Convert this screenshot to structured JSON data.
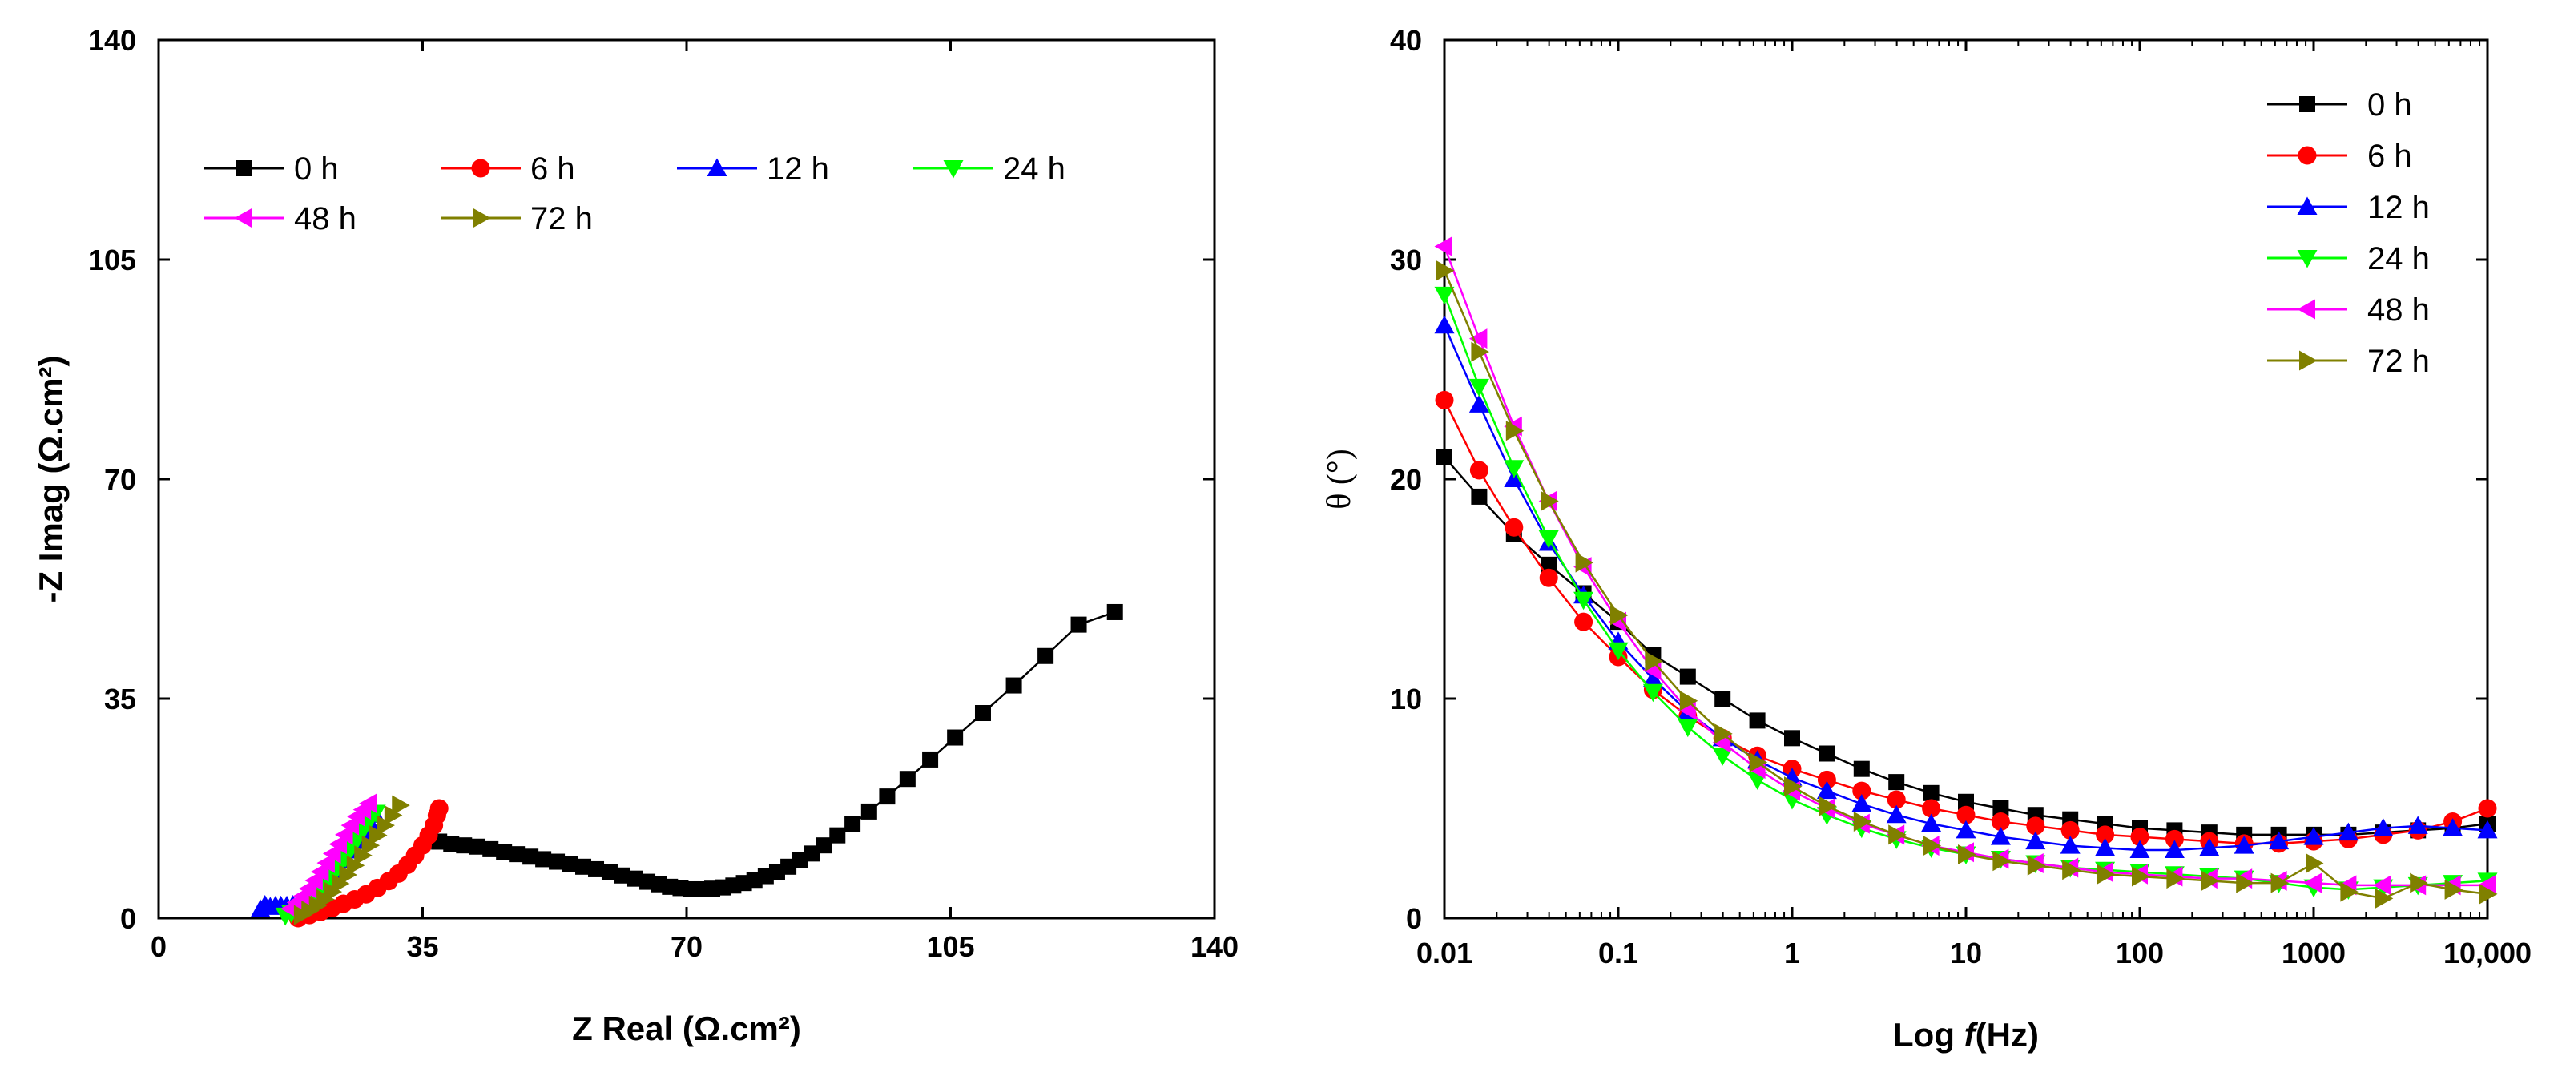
{
  "series_styles": [
    {
      "name": "0 h",
      "marker": "square",
      "color": "#000000"
    },
    {
      "name": "6 h",
      "marker": "circle",
      "color": "#ff0000"
    },
    {
      "name": "12 h",
      "marker": "triangle-up",
      "color": "#0000ff"
    },
    {
      "name": "24 h",
      "marker": "triangle-down",
      "color": "#00ff00"
    },
    {
      "name": "48 h",
      "marker": "triangle-left",
      "color": "#ff00ff"
    },
    {
      "name": "72 h",
      "marker": "triangle-right",
      "color": "#808000"
    }
  ],
  "chart_data": [
    {
      "type": "scatter",
      "title": "",
      "xlabel": "Z Real (Ω.cm²)",
      "ylabel": "-Z Imag (Ω.cm²)",
      "xlim": [
        0,
        140
      ],
      "ylim": [
        0,
        140
      ],
      "xticks": [
        0,
        35,
        70,
        105,
        140
      ],
      "yticks": [
        0,
        35,
        70,
        105,
        140
      ],
      "legend_position": "top-left",
      "series": [
        {
          "name": "0 h",
          "points": [
            [
              37.2,
              12.2
            ],
            [
              38.8,
              11.8
            ],
            [
              40.5,
              11.6
            ],
            [
              42.2,
              11.4
            ],
            [
              44,
              11
            ],
            [
              45.8,
              10.6
            ],
            [
              47.5,
              10.2
            ],
            [
              49.3,
              9.8
            ],
            [
              51,
              9.4
            ],
            [
              52.8,
              9
            ],
            [
              54.5,
              8.6
            ],
            [
              56.3,
              8.2
            ],
            [
              58,
              7.8
            ],
            [
              59.8,
              7.3
            ],
            [
              61.5,
              6.8
            ],
            [
              63.2,
              6.3
            ],
            [
              64.8,
              5.8
            ],
            [
              66.3,
              5.4
            ],
            [
              67.8,
              5
            ],
            [
              69.2,
              4.8
            ],
            [
              70.6,
              4.6
            ],
            [
              72,
              4.6
            ],
            [
              73.4,
              4.7
            ],
            [
              74.8,
              4.9
            ],
            [
              76.2,
              5.2
            ],
            [
              77.6,
              5.6
            ],
            [
              79,
              6.1
            ],
            [
              80.5,
              6.7
            ],
            [
              82,
              7.4
            ],
            [
              83.5,
              8.2
            ],
            [
              85,
              9.2
            ],
            [
              86.6,
              10.3
            ],
            [
              88.2,
              11.6
            ],
            [
              90,
              13.2
            ],
            [
              92,
              15
            ],
            [
              94.2,
              17
            ],
            [
              96.6,
              19.4
            ],
            [
              99.3,
              22.2
            ],
            [
              102.3,
              25.3
            ],
            [
              105.6,
              28.8
            ],
            [
              109.3,
              32.7
            ],
            [
              113.4,
              37.1
            ],
            [
              117.6,
              41.8
            ],
            [
              122,
              46.8
            ],
            [
              126.8,
              48.8
            ]
          ]
        },
        {
          "name": "6 h",
          "points": [
            [
              18.5,
              0
            ],
            [
              20,
              0.5
            ],
            [
              21.5,
              1
            ],
            [
              23,
              1.6
            ],
            [
              24.5,
              2.3
            ],
            [
              26,
              3
            ],
            [
              27.5,
              3.8
            ],
            [
              29,
              4.8
            ],
            [
              30.5,
              5.9
            ],
            [
              31.8,
              7.1
            ],
            [
              33,
              8.5
            ],
            [
              34,
              10
            ],
            [
              35,
              11.6
            ],
            [
              35.8,
              13.2
            ],
            [
              36.5,
              14.8
            ],
            [
              36.9,
              16.4
            ],
            [
              37.2,
              17.5
            ]
          ]
        },
        {
          "name": "12 h",
          "points": [
            [
              13.5,
              1.4
            ],
            [
              14.1,
              2.1
            ],
            [
              14.8,
              1.8
            ],
            [
              15.5,
              2
            ],
            [
              16.2,
              2
            ],
            [
              17,
              2
            ],
            [
              17.8,
              2.1
            ],
            [
              18.6,
              2.3
            ],
            [
              19.4,
              2.6
            ],
            [
              20.2,
              3
            ],
            [
              20.9,
              3.6
            ],
            [
              21.6,
              4.4
            ],
            [
              22.4,
              5.4
            ],
            [
              23.2,
              6.6
            ],
            [
              24,
              7.9
            ],
            [
              24.8,
              9.3
            ],
            [
              25.6,
              10.8
            ],
            [
              26.4,
              12.3
            ],
            [
              27.2,
              13.8
            ],
            [
              28,
              15.2
            ],
            [
              28.7,
              16.5
            ]
          ]
        },
        {
          "name": "24 h",
          "points": [
            [
              16.8,
              0.4
            ],
            [
              17.6,
              0.8
            ],
            [
              18.4,
              1.2
            ],
            [
              19.2,
              1.8
            ],
            [
              20,
              2.5
            ],
            [
              20.8,
              3.4
            ],
            [
              21.6,
              4.4
            ],
            [
              22.4,
              5.6
            ],
            [
              23.2,
              6.9
            ],
            [
              24,
              8.3
            ],
            [
              24.8,
              9.7
            ],
            [
              25.6,
              11.2
            ],
            [
              26.4,
              12.7
            ],
            [
              27.2,
              14.2
            ],
            [
              28,
              15.6
            ],
            [
              28.8,
              16.8
            ]
          ]
        },
        {
          "name": "48 h",
          "points": [
            [
              17.5,
              1.5
            ],
            [
              18.3,
              2.5
            ],
            [
              19.1,
              3.5
            ],
            [
              19.9,
              4.7
            ],
            [
              20.7,
              6
            ],
            [
              21.5,
              7.4
            ],
            [
              22.3,
              8.8
            ],
            [
              23.1,
              10.3
            ],
            [
              23.9,
              11.8
            ],
            [
              24.7,
              13.3
            ],
            [
              25.5,
              14.8
            ],
            [
              26.3,
              16.2
            ],
            [
              27.1,
              17.3
            ],
            [
              27.9,
              18.3
            ]
          ]
        },
        {
          "name": "72 h",
          "points": [
            [
              19,
              0.5
            ],
            [
              20,
              1.2
            ],
            [
              21,
              2
            ],
            [
              22,
              3
            ],
            [
              23,
              4.2
            ],
            [
              24,
              5.5
            ],
            [
              25,
              6.9
            ],
            [
              26,
              8.4
            ],
            [
              27,
              10
            ],
            [
              28,
              11.6
            ],
            [
              29,
              13.2
            ],
            [
              30,
              14.8
            ],
            [
              31,
              16.4
            ],
            [
              32,
              18
            ]
          ]
        }
      ]
    },
    {
      "type": "scatter",
      "title": "",
      "xlabel_prefix": "Log ",
      "xlabel_italic": "f",
      "xlabel_suffix": "(Hz)",
      "ylabel": "θ (°)",
      "xscale": "log",
      "xlim": [
        0.01,
        10000
      ],
      "ylim": [
        0,
        40
      ],
      "xtick_values": [
        0.01,
        0.1,
        1,
        10,
        100,
        1000,
        10000
      ],
      "xtick_labels": [
        "0.01",
        "0.1",
        "1",
        "10",
        "100",
        "1000",
        "10,000"
      ],
      "yticks": [
        0,
        10,
        20,
        30,
        40
      ],
      "legend_position": "top-right",
      "series": [
        {
          "name": "0 h",
          "log_f": [
            -2,
            -1.8,
            -1.6,
            -1.4,
            -1.2,
            -1,
            -0.8,
            -0.6,
            -0.4,
            -0.2,
            0,
            0.2,
            0.4,
            0.6,
            0.8,
            1,
            1.2,
            1.4,
            1.6,
            1.8,
            2,
            2.2,
            2.4,
            2.6,
            2.8,
            3,
            3.2,
            3.4,
            3.6,
            3.8,
            4
          ],
          "theta": [
            21,
            19.2,
            17.5,
            16.1,
            14.8,
            13.5,
            12,
            11,
            10,
            9,
            8.2,
            7.5,
            6.8,
            6.2,
            5.7,
            5.3,
            5,
            4.7,
            4.5,
            4.3,
            4.1,
            4,
            3.9,
            3.8,
            3.8,
            3.8,
            3.8,
            3.9,
            4,
            4.1,
            4.3
          ]
        },
        {
          "name": "6 h",
          "log_f": [
            -2,
            -1.8,
            -1.6,
            -1.4,
            -1.2,
            -1,
            -0.8,
            -0.6,
            -0.4,
            -0.2,
            0,
            0.2,
            0.4,
            0.6,
            0.8,
            1,
            1.2,
            1.4,
            1.6,
            1.8,
            2,
            2.2,
            2.4,
            2.6,
            2.8,
            3,
            3.2,
            3.4,
            3.6,
            3.8,
            4
          ],
          "theta": [
            23.6,
            20.4,
            17.8,
            15.5,
            13.5,
            11.9,
            10.4,
            9.2,
            8.2,
            7.4,
            6.8,
            6.3,
            5.8,
            5.4,
            5,
            4.7,
            4.4,
            4.2,
            4,
            3.8,
            3.7,
            3.6,
            3.5,
            3.4,
            3.4,
            3.5,
            3.6,
            3.8,
            4,
            4.4,
            5
          ]
        },
        {
          "name": "12 h",
          "log_f": [
            -2,
            -1.8,
            -1.6,
            -1.4,
            -1.2,
            -1,
            -0.8,
            -0.6,
            -0.4,
            -0.2,
            0,
            0.2,
            0.4,
            0.6,
            0.8,
            1,
            1.2,
            1.4,
            1.6,
            1.8,
            2,
            2.2,
            2.4,
            2.6,
            2.8,
            3,
            3.2,
            3.4,
            3.6,
            3.8,
            4
          ],
          "theta": [
            27,
            23.4,
            20,
            17.1,
            14.7,
            12.6,
            10.9,
            9.4,
            8.2,
            7.2,
            6.4,
            5.8,
            5.2,
            4.7,
            4.3,
            4,
            3.7,
            3.5,
            3.3,
            3.2,
            3.1,
            3.1,
            3.2,
            3.3,
            3.5,
            3.7,
            3.9,
            4.1,
            4.2,
            4.1,
            4
          ]
        },
        {
          "name": "24 h",
          "log_f": [
            -2,
            -1.8,
            -1.6,
            -1.4,
            -1.2,
            -1,
            -0.8,
            -0.6,
            -0.4,
            -0.2,
            0,
            0.2,
            0.4,
            0.6,
            0.8,
            1,
            1.2,
            1.4,
            1.6,
            1.8,
            2,
            2.2,
            2.4,
            2.6,
            2.8,
            3,
            3.2,
            3.4,
            3.6,
            3.8,
            4
          ],
          "theta": [
            28.4,
            24.2,
            20.5,
            17.3,
            14.5,
            12.2,
            10.3,
            8.7,
            7.4,
            6.3,
            5.4,
            4.7,
            4.1,
            3.6,
            3.2,
            2.9,
            2.7,
            2.5,
            2.3,
            2.2,
            2.1,
            2,
            1.9,
            1.8,
            1.6,
            1.4,
            1.3,
            1.4,
            1.5,
            1.6,
            1.7
          ]
        },
        {
          "name": "48 h",
          "log_f": [
            -2,
            -1.8,
            -1.6,
            -1.4,
            -1.2,
            -1,
            -0.8,
            -0.6,
            -0.4,
            -0.2,
            0,
            0.2,
            0.4,
            0.6,
            0.8,
            1,
            1.2,
            1.4,
            1.6,
            1.8,
            2,
            2.2,
            2.4,
            2.6,
            2.8,
            3,
            3.2,
            3.4,
            3.6,
            3.8,
            4
          ],
          "theta": [
            30.6,
            26.4,
            22.4,
            19,
            16,
            13.5,
            11.3,
            9.5,
            8,
            6.8,
            5.8,
            5,
            4.3,
            3.8,
            3.3,
            3,
            2.7,
            2.5,
            2.3,
            2.1,
            2,
            1.9,
            1.8,
            1.8,
            1.7,
            1.6,
            1.5,
            1.5,
            1.5,
            1.5,
            1.5
          ]
        },
        {
          "name": "72 h",
          "log_f": [
            -2,
            -1.8,
            -1.6,
            -1.4,
            -1.2,
            -1,
            -0.8,
            -0.6,
            -0.4,
            -0.2,
            0,
            0.2,
            0.4,
            0.6,
            0.8,
            1,
            1.2,
            1.4,
            1.6,
            1.8,
            2,
            2.2,
            2.4,
            2.6,
            2.8,
            3,
            3.2,
            3.4,
            3.6,
            3.8,
            4
          ],
          "theta": [
            29.5,
            25.8,
            22.2,
            19,
            16.2,
            13.8,
            11.7,
            9.9,
            8.4,
            7.1,
            6,
            5.1,
            4.4,
            3.8,
            3.3,
            2.9,
            2.6,
            2.4,
            2.2,
            2,
            1.9,
            1.8,
            1.7,
            1.6,
            1.6,
            2.5,
            1.2,
            0.9,
            1.6,
            1.3,
            1.1
          ]
        }
      ]
    }
  ]
}
